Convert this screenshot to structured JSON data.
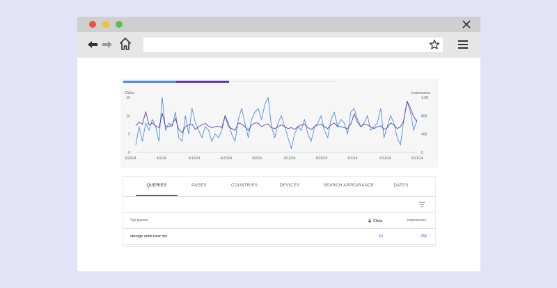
{
  "colors": {
    "background": "#e4e2f7",
    "clicks": "#4a8fe0",
    "impressions": "#5a3ea6",
    "tab_clicks": "#4a86e8",
    "tab_impressions": "#5e35b1"
  },
  "browser": {
    "buttons": [
      "close-dot",
      "minimize-dot",
      "zoom-dot"
    ],
    "icons": [
      "back-arrow-icon",
      "forward-arrow-icon",
      "home-icon",
      "star-icon",
      "hamburger-menu-icon",
      "close-icon"
    ],
    "address": ""
  },
  "chart_data": {
    "type": "line",
    "left_axis_title": "Clicks",
    "right_axis_title": "Impressions",
    "y_left_ticks": [
      "15",
      "10",
      "5",
      "0"
    ],
    "y_right_ticks": [
      "1.2K",
      "800",
      "400",
      "0"
    ],
    "y_left_range": [
      0,
      15
    ],
    "y_right_range": [
      0,
      1200
    ],
    "x_ticks": [
      "3/23/24",
      "4/2/24",
      "4/12/24",
      "4/22/24",
      "5/2/24",
      "5/12/24",
      "5/22/24",
      "6/1/24",
      "6/11/24",
      "6/21/24"
    ],
    "grid": false,
    "series": [
      {
        "name": "Clicks",
        "axis": "left",
        "values": [
          2,
          7,
          3,
          8,
          6,
          9,
          7,
          3,
          15,
          6,
          8,
          7,
          11,
          4,
          3,
          10,
          5,
          12,
          8,
          6,
          4,
          7,
          6,
          3,
          5,
          4,
          6,
          10,
          8,
          5,
          3,
          9,
          12,
          8,
          4,
          9,
          11,
          12,
          9,
          13,
          15,
          7,
          4,
          8,
          10,
          7,
          4,
          1,
          5,
          7,
          6,
          9,
          5,
          3,
          7,
          8,
          10,
          6,
          4,
          9,
          11,
          7,
          9,
          8,
          5,
          11,
          12,
          9,
          7,
          8,
          10,
          6,
          7,
          8,
          12,
          4,
          7,
          10,
          8,
          4,
          2,
          9,
          14,
          11,
          6,
          9
        ]
      },
      {
        "name": "Impressions",
        "axis": "right",
        "values": [
          580,
          660,
          610,
          890,
          600,
          640,
          580,
          540,
          850,
          560,
          560,
          610,
          740,
          500,
          430,
          560,
          600,
          620,
          500,
          560,
          600,
          630,
          570,
          540,
          560,
          570,
          540,
          800,
          560,
          520,
          480,
          640,
          620,
          560,
          480,
          600,
          640,
          640,
          560,
          600,
          620,
          540,
          520,
          560,
          600,
          560,
          520,
          540,
          500,
          560,
          600,
          620,
          540,
          500,
          560,
          600,
          620,
          560,
          520,
          600,
          640,
          560,
          560,
          540,
          520,
          620,
          840,
          660,
          560,
          620,
          600,
          560,
          520,
          560,
          580,
          500,
          540,
          640,
          600,
          520,
          560,
          700,
          1120,
          960,
          780,
          660
        ]
      }
    ]
  },
  "table": {
    "tabs": [
      "QUERIES",
      "PAGES",
      "COUNTRIES",
      "DEVICES",
      "SEARCH APPEARANCE",
      "DATES"
    ],
    "active_tab": "QUERIES",
    "columns": [
      "Top queries",
      "Clicks",
      "Impressions"
    ],
    "sort_column": "Clicks",
    "rows": [
      {
        "query": "storage units near me",
        "clicks": "63",
        "impressions": "265"
      }
    ]
  }
}
